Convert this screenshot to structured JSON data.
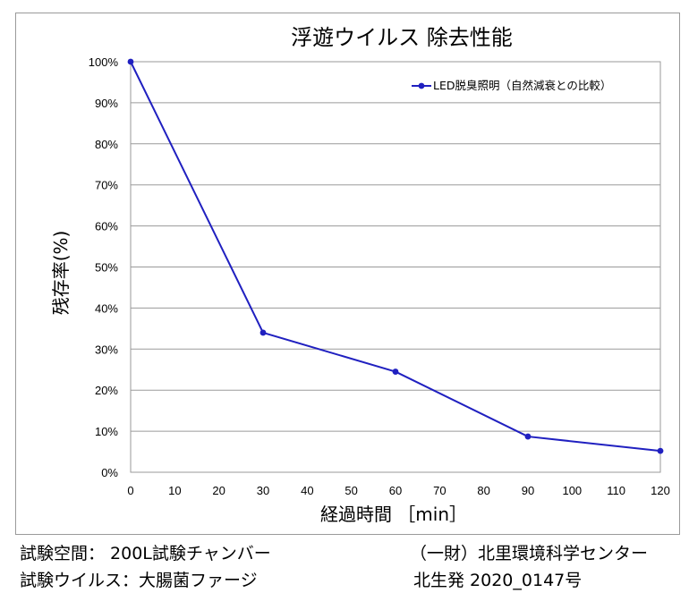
{
  "chart_data": {
    "type": "line",
    "title": "浮遊ウイルス 除去性能",
    "xlabel": "経過時間 ［min］",
    "ylabel": "残存率(%)",
    "x": [
      0,
      30,
      60,
      90,
      120
    ],
    "x_ticks": [
      "0",
      "10",
      "20",
      "30",
      "40",
      "50",
      "60",
      "70",
      "80",
      "90",
      "100",
      "110",
      "120"
    ],
    "y_ticks": [
      "0%",
      "10%",
      "20%",
      "30%",
      "40%",
      "50%",
      "60%",
      "70%",
      "80%",
      "90%",
      "100%"
    ],
    "xlim": [
      0,
      120
    ],
    "ylim": [
      0,
      100
    ],
    "grid": "horizontal",
    "legend_position": "top-right",
    "series": [
      {
        "name": "LED脱臭照明（自然減衰との比較）",
        "color": "#2020c0",
        "values": [
          100,
          34,
          24.5,
          8.7,
          5.2
        ]
      }
    ]
  },
  "footer": {
    "left_line1": "試験空間： 200L試験チャンバー",
    "left_line2": "試験ウイルス：大腸菌ファージ",
    "right_line1": "（一財）北里環境科学センター",
    "right_line2": "北生発 2020_0147号"
  }
}
